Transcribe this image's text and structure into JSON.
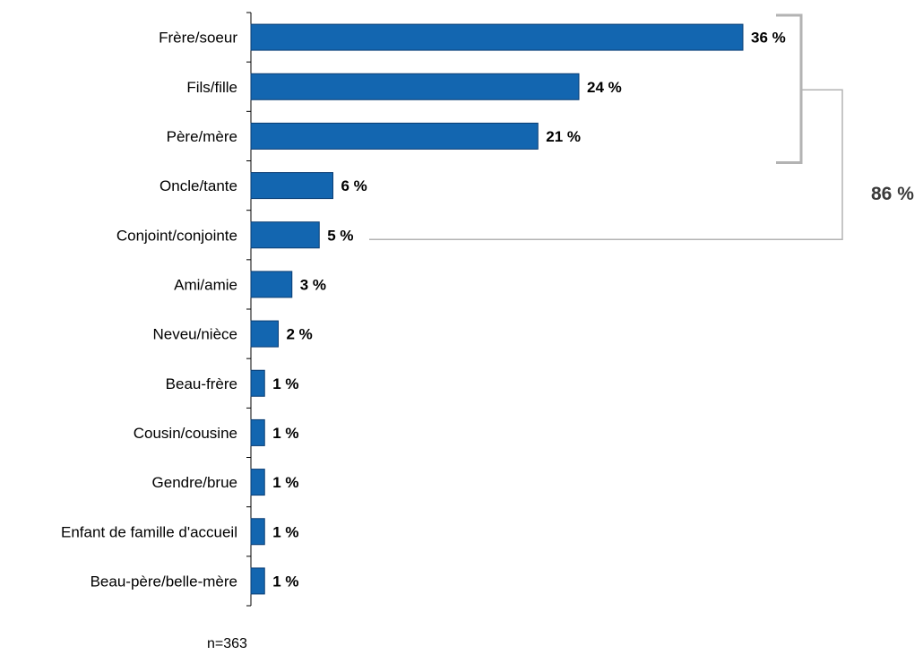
{
  "chart_data": {
    "type": "bar",
    "orientation": "horizontal",
    "categories": [
      "Frère/soeur",
      "Fils/fille",
      "Père/mère",
      "Oncle/tante",
      "Conjoint/conjointe",
      "Ami/amie",
      "Neveu/nièce",
      "Beau-frère",
      "Cousin/cousine",
      "Gendre/brue",
      "Enfant de famille d'accueil",
      "Beau-père/belle-mère"
    ],
    "values": [
      36,
      24,
      21,
      6,
      5,
      3,
      2,
      1,
      1,
      1,
      1,
      1
    ],
    "value_suffix": " %",
    "xlim": [
      0,
      50
    ],
    "bar_color": "#1366b0",
    "bar_edge_color": "#0a3d73",
    "grid": false,
    "bracket": {
      "label": "86 %",
      "covers_categories": [
        "Frère/soeur",
        "Fils/fille",
        "Père/mère",
        "Conjoint/conjointe"
      ],
      "color": "#b3b3b3"
    },
    "footnote": "n=363"
  }
}
